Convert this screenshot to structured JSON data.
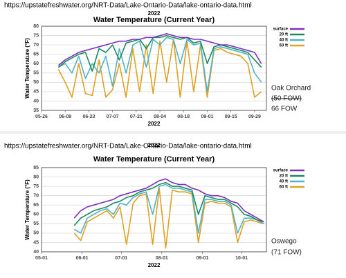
{
  "chart_data": [
    {
      "type": "line",
      "url": "https://upstatefreshwater.org/NRT-Data/Lake-Ontario-Data/lake-ontario-data.html",
      "year_label": "2022",
      "title": "Water Temperature (Current Year)",
      "xlabel": "2022",
      "ylabel": "Water Temperature (°F)",
      "legend": "right",
      "grid": true,
      "x": [
        "06-05",
        "06-09",
        "06-13",
        "06-17",
        "06-21",
        "06-25",
        "06-29",
        "07-03",
        "07-07",
        "07-11",
        "07-15",
        "07-19",
        "07-23",
        "07-27",
        "07-31",
        "08-04",
        "08-08",
        "08-12",
        "08-16",
        "08-20",
        "08-24",
        "08-28",
        "09-01",
        "09-05",
        "09-09",
        "09-13",
        "09-17",
        "09-21",
        "09-25",
        "09-29",
        "10-03"
      ],
      "xlim": [
        "05-26",
        "10-06"
      ],
      "xticks": [
        "05-26",
        "06-09",
        "06-23",
        "07-07",
        "07-21",
        "08-04",
        "08-18",
        "09-01",
        "09-15",
        "09-29"
      ],
      "ylim": [
        35,
        80
      ],
      "yticks": [
        35,
        40,
        45,
        50,
        55,
        60,
        65,
        70,
        75,
        80
      ],
      "series": [
        {
          "name": "surface",
          "color": "#7b2fbe",
          "values": [
            59,
            62,
            64,
            66,
            67,
            68,
            69,
            70,
            71,
            72,
            72,
            73,
            73,
            74,
            74,
            75,
            76,
            75,
            74,
            74,
            73,
            73,
            72,
            71,
            70,
            70,
            69,
            68,
            67,
            66,
            60
          ]
        },
        {
          "name": "20 ft",
          "color": "#1a8a5a",
          "values": [
            58,
            61,
            63,
            65,
            66,
            56,
            68,
            66,
            70,
            62,
            71,
            72,
            73,
            68,
            74,
            74,
            75,
            74,
            73,
            74,
            71,
            72,
            60,
            69,
            70,
            69,
            68,
            67,
            66,
            62,
            58
          ]
        },
        {
          "name": "40 ft",
          "color": "#4fb3c8",
          "values": [
            58,
            60,
            55,
            64,
            52,
            60,
            55,
            64,
            48,
            68,
            55,
            70,
            72,
            58,
            73,
            70,
            74,
            73,
            60,
            73,
            70,
            71,
            45,
            68,
            69,
            68,
            67,
            66,
            65,
            55,
            50
          ]
        },
        {
          "name": "60 ft",
          "color": "#e0a020",
          "values": [
            57,
            50,
            42,
            60,
            44,
            43,
            62,
            42,
            46,
            60,
            42,
            68,
            45,
            70,
            44,
            72,
            50,
            73,
            42,
            72,
            45,
            70,
            42,
            67,
            68,
            66,
            65,
            64,
            60,
            42,
            45
          ]
        }
      ],
      "annotations": [
        {
          "text": "Oak Orchard",
          "struck": false
        },
        {
          "text": "(50 FOW)",
          "struck": true
        },
        {
          "text": "66 FOW",
          "struck": false
        }
      ]
    },
    {
      "type": "line",
      "url": "https://upstatefreshwater.org/NRT-Data/Lake-Ontario-Data/lake-ontario-data.html",
      "year_label": "2022",
      "title": "Water Temperature (Current Year)",
      "xlabel": "2022",
      "ylabel": "Water Temperature (°F)",
      "legend": "right",
      "grid": true,
      "x": [
        "05-26",
        "05-31",
        "06-05",
        "06-10",
        "06-15",
        "06-20",
        "06-25",
        "06-30",
        "07-05",
        "07-10",
        "07-15",
        "07-20",
        "07-25",
        "07-30",
        "08-04",
        "08-09",
        "08-14",
        "08-19",
        "08-24",
        "08-29",
        "09-03",
        "09-08",
        "09-13",
        "09-18",
        "09-23",
        "09-28",
        "10-03",
        "10-08",
        "10-13",
        "10-18"
      ],
      "xlim": [
        "05-01",
        "10-20"
      ],
      "xticks": [
        "05-01",
        "06-01",
        "07-01",
        "08-01",
        "09-01",
        "10-01"
      ],
      "ylim": [
        40,
        85
      ],
      "yticks": [
        40,
        45,
        50,
        55,
        60,
        65,
        70,
        75,
        80,
        85
      ],
      "series": [
        {
          "name": "surface",
          "color": "#7b2fbe",
          "values": [
            58,
            62,
            64,
            65,
            66,
            67,
            68,
            70,
            71,
            72,
            73,
            74,
            76,
            78,
            79,
            77,
            76,
            76,
            74,
            73,
            71,
            70,
            70,
            69,
            67,
            66,
            62,
            60,
            58,
            56
          ]
        },
        {
          "name": "20 ft",
          "color": "#1a8a5a",
          "values": [
            54,
            58,
            60,
            62,
            63,
            64,
            66,
            67,
            69,
            70,
            72,
            73,
            74,
            76,
            77,
            75,
            75,
            74,
            73,
            60,
            70,
            69,
            68,
            68,
            66,
            64,
            60,
            59,
            57,
            56
          ]
        },
        {
          "name": "40 ft",
          "color": "#4fb3c8",
          "values": [
            52,
            50,
            58,
            60,
            62,
            63,
            60,
            66,
            65,
            69,
            71,
            72,
            60,
            75,
            76,
            74,
            74,
            73,
            72,
            50,
            68,
            68,
            67,
            67,
            65,
            50,
            58,
            58,
            57,
            55
          ]
        },
        {
          "name": "60 ft",
          "color": "#e0a020",
          "values": [
            50,
            46,
            56,
            58,
            60,
            62,
            58,
            64,
            44,
            66,
            70,
            71,
            44,
            74,
            42,
            73,
            72,
            72,
            71,
            45,
            66,
            67,
            66,
            66,
            64,
            45,
            56,
            57,
            56,
            55
          ]
        }
      ],
      "annotations": [
        {
          "text": "Oswego",
          "struck": false
        },
        {
          "text": "(71 FOW)",
          "struck": false
        }
      ]
    }
  ]
}
